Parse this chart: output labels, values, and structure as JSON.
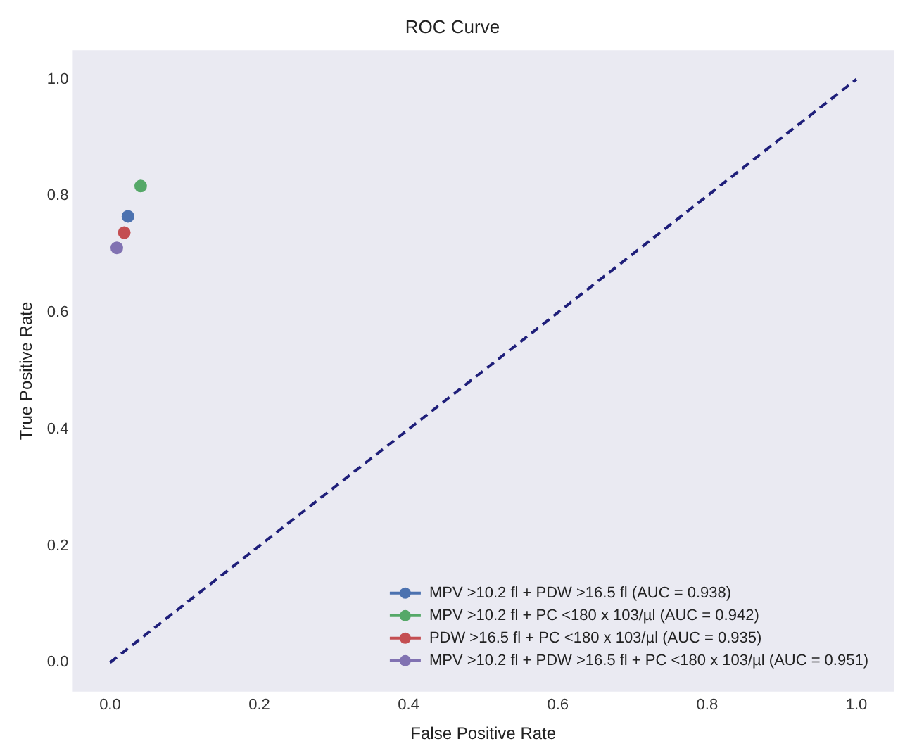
{
  "chart_data": {
    "type": "line",
    "title": "ROC Curve",
    "xlabel": "False Positive Rate",
    "ylabel": "True Positive Rate",
    "xlim": [
      -0.05,
      1.05
    ],
    "ylim": [
      -0.05,
      1.05
    ],
    "xticks": [
      {
        "value": 0,
        "label": "0.0"
      },
      0.2,
      0.4,
      0.6,
      0.8,
      {
        "value": 1,
        "label": "1.0"
      }
    ],
    "yticks": [
      {
        "value": 0,
        "label": "0.0"
      },
      0.2,
      0.4,
      0.6,
      0.8,
      {
        "value": 1,
        "label": "1.0"
      }
    ],
    "grid": false,
    "legend": "bottom right",
    "series": [
      {
        "name": "MPV >10.2 fl + PDW >16.5 fl (AUC = 0.938)",
        "color": "#4c72b0",
        "x": [
          0.024
        ],
        "values": [
          0.765
        ],
        "marker": "circle"
      },
      {
        "name": "MPV >10.2 fl + PC <180 x 103/µl (AUC = 0.942)",
        "color": "#55a868",
        "x": [
          0.041
        ],
        "values": [
          0.817
        ],
        "marker": "circle"
      },
      {
        "name": "PDW >16.5 fl + PC <180 x 103/µl (AUC = 0.935)",
        "color": "#c44e52",
        "x": [
          0.019
        ],
        "values": [
          0.737
        ],
        "marker": "circle"
      },
      {
        "name": "MPV >10.2 fl + PDW >16.5 fl + PC <180 x 103/µl (AUC = 0.951)",
        "color": "#8172b2",
        "x": [
          0.009
        ],
        "values": [
          0.711
        ],
        "marker": "circle"
      },
      {
        "color": "#1f1f7a",
        "x": [
          0,
          1
        ],
        "values": [
          0,
          1
        ],
        "marker": "none",
        "line_style": "dashed"
      }
    ]
  }
}
